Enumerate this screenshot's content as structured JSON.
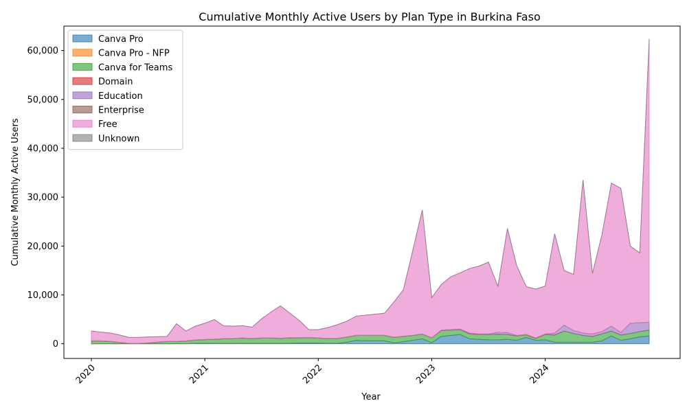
{
  "chart_data": {
    "type": "area",
    "stacked": true,
    "title": "Cumulative Monthly Active Users by Plan Type in Burkina Faso",
    "xlabel": "Year",
    "ylabel": "Cumulative Monthly Active Users",
    "x_ticks": [
      "2020",
      "2021",
      "2022",
      "2023",
      "2024"
    ],
    "y_ticks": [
      "0",
      "10,000",
      "20,000",
      "30,000",
      "40,000",
      "50,000",
      "60,000"
    ],
    "ylim": [
      -3000,
      65000
    ],
    "grid": false,
    "legend_position": "upper-left",
    "months": [
      "2020-01",
      "2020-02",
      "2020-03",
      "2020-04",
      "2020-05",
      "2020-06",
      "2020-07",
      "2020-08",
      "2020-09",
      "2020-10",
      "2020-11",
      "2020-12",
      "2021-01",
      "2021-02",
      "2021-03",
      "2021-04",
      "2021-05",
      "2021-06",
      "2021-07",
      "2021-08",
      "2021-09",
      "2021-10",
      "2021-11",
      "2021-12",
      "2022-01",
      "2022-02",
      "2022-03",
      "2022-04",
      "2022-05",
      "2022-06",
      "2022-07",
      "2022-08",
      "2022-09",
      "2022-10",
      "2022-11",
      "2022-12",
      "2023-01",
      "2023-02",
      "2023-03",
      "2023-04",
      "2023-05",
      "2023-06",
      "2023-07",
      "2023-08",
      "2023-09",
      "2023-10",
      "2023-11",
      "2023-12",
      "2024-01",
      "2024-02",
      "2024-03",
      "2024-04",
      "2024-05",
      "2024-06",
      "2024-07",
      "2024-08",
      "2024-09",
      "2024-10",
      "2024-11",
      "2024-12"
    ],
    "series": [
      {
        "name": "Canva Pro",
        "color": "#1f77b4",
        "values": [
          0,
          0,
          0,
          0,
          0,
          0,
          0,
          0,
          0,
          0,
          0,
          100,
          100,
          100,
          50,
          50,
          100,
          100,
          100,
          100,
          100,
          100,
          150,
          150,
          150,
          100,
          100,
          300,
          700,
          600,
          600,
          600,
          200,
          400,
          700,
          1000,
          200,
          1500,
          1700,
          1900,
          1000,
          900,
          800,
          800,
          900,
          700,
          1300,
          700,
          800,
          300,
          300,
          300,
          300,
          300,
          600,
          1600,
          700,
          1000,
          1400,
          1600
        ]
      },
      {
        "name": "Canva Pro - NFP",
        "color": "#ff7f0e",
        "values": [
          0,
          0,
          0,
          0,
          0,
          0,
          0,
          0,
          0,
          0,
          0,
          0,
          0,
          0,
          0,
          0,
          0,
          0,
          0,
          0,
          0,
          0,
          0,
          0,
          0,
          0,
          0,
          0,
          0,
          0,
          0,
          0,
          0,
          0,
          0,
          0,
          0,
          0,
          0,
          0,
          0,
          0,
          0,
          0,
          0,
          0,
          0,
          0,
          0,
          0,
          0,
          0,
          0,
          0,
          0,
          0,
          0,
          0,
          0,
          0
        ]
      },
      {
        "name": "Canva for Teams",
        "color": "#2ca02c",
        "values": [
          550,
          550,
          450,
          250,
          50,
          50,
          150,
          300,
          450,
          450,
          550,
          650,
          750,
          800,
          950,
          1000,
          1050,
          950,
          1050,
          1050,
          1000,
          1100,
          1050,
          1100,
          1000,
          950,
          950,
          1050,
          1000,
          1100,
          1100,
          1100,
          1100,
          1100,
          1000,
          950,
          1000,
          1200,
          1100,
          1000,
          1000,
          1000,
          1100,
          1150,
          1000,
          900,
          500,
          400,
          1100,
          1500,
          2300,
          1800,
          1400,
          1200,
          1400,
          1000,
          1100,
          1100,
          1100,
          1200
        ]
      },
      {
        "name": "Domain",
        "color": "#d62728",
        "values": [
          0,
          0,
          0,
          0,
          0,
          0,
          0,
          0,
          0,
          0,
          0,
          0,
          0,
          0,
          0,
          0,
          0,
          0,
          0,
          0,
          0,
          0,
          0,
          0,
          0,
          0,
          0,
          0,
          0,
          0,
          0,
          0,
          0,
          0,
          0,
          0,
          0,
          0,
          0,
          0,
          0,
          0,
          0,
          0,
          0,
          0,
          0,
          0,
          0,
          0,
          0,
          0,
          0,
          0,
          0,
          0,
          0,
          0,
          0,
          0
        ]
      },
      {
        "name": "Education",
        "color": "#9467bd",
        "values": [
          50,
          50,
          50,
          50,
          50,
          50,
          50,
          50,
          50,
          50,
          50,
          50,
          50,
          50,
          50,
          50,
          50,
          50,
          50,
          50,
          50,
          50,
          50,
          50,
          50,
          50,
          50,
          50,
          50,
          50,
          50,
          50,
          50,
          50,
          50,
          50,
          50,
          100,
          100,
          100,
          200,
          100,
          100,
          400,
          400,
          100,
          100,
          100,
          100,
          400,
          1200,
          600,
          500,
          500,
          500,
          1000,
          500,
          2100,
          1800,
          1600
        ]
      },
      {
        "name": "Enterprise",
        "color": "#8c564b",
        "values": [
          0,
          0,
          0,
          0,
          0,
          0,
          0,
          0,
          0,
          0,
          0,
          0,
          0,
          0,
          0,
          0,
          0,
          0,
          0,
          0,
          0,
          0,
          0,
          0,
          0,
          0,
          0,
          0,
          0,
          0,
          0,
          0,
          0,
          0,
          0,
          0,
          0,
          0,
          0,
          0,
          0,
          0,
          0,
          0,
          0,
          0,
          0,
          0,
          0,
          0,
          0,
          0,
          0,
          0,
          0,
          0,
          0,
          0,
          0,
          0
        ]
      },
      {
        "name": "Free",
        "color": "#e377c2",
        "values": [
          2000,
          1800,
          1700,
          1500,
          1200,
          1200,
          1200,
          1100,
          1000,
          3600,
          2000,
          2800,
          3300,
          4000,
          2600,
          2500,
          2500,
          2300,
          3900,
          5300,
          6600,
          5000,
          3500,
          1600,
          1700,
          2200,
          2800,
          3200,
          3900,
          4100,
          4300,
          4500,
          7200,
          9500,
          17400,
          25400,
          8200,
          9300,
          10800,
          11500,
          13200,
          13900,
          14700,
          9400,
          21300,
          14200,
          9800,
          10000,
          9800,
          20300,
          11200,
          11500,
          31300,
          12400,
          19800,
          29300,
          29500,
          15800,
          14300,
          58000
        ]
      },
      {
        "name": "Unknown",
        "color": "#7f7f7f",
        "values": [
          0,
          0,
          0,
          0,
          0,
          0,
          0,
          0,
          0,
          0,
          0,
          0,
          0,
          0,
          0,
          0,
          0,
          0,
          0,
          0,
          0,
          0,
          0,
          0,
          0,
          0,
          0,
          0,
          0,
          0,
          0,
          0,
          0,
          0,
          0,
          0,
          0,
          0,
          0,
          0,
          0,
          0,
          0,
          0,
          0,
          0,
          0,
          0,
          0,
          0,
          0,
          0,
          0,
          0,
          0,
          0,
          0,
          0,
          0,
          0
        ]
      }
    ]
  }
}
